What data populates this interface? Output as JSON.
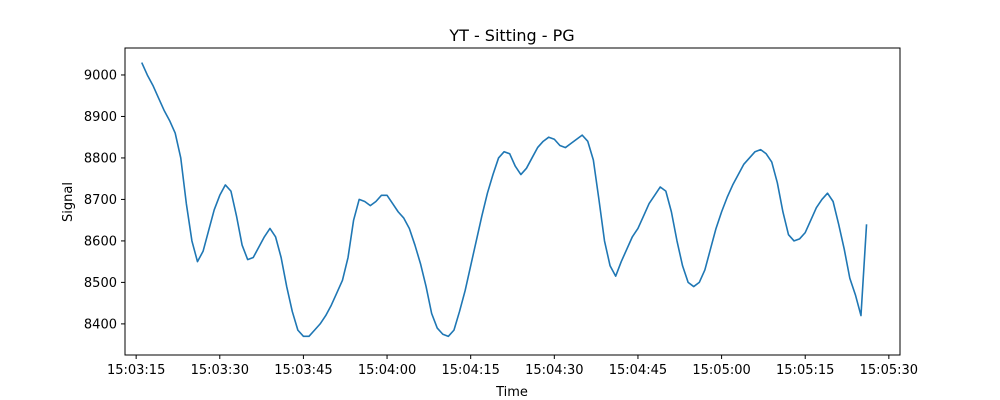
{
  "chart_data": {
    "type": "line",
    "title": "YT - Sitting - PG",
    "xlabel": "Time",
    "ylabel": "Signal",
    "grid": false,
    "x_ticks": [
      "15:03:15",
      "15:03:30",
      "15:03:45",
      "15:04:00",
      "15:04:15",
      "15:04:30",
      "15:04:45",
      "15:05:00",
      "15:05:15",
      "15:05:30"
    ],
    "y_ticks": [
      8400,
      8500,
      8600,
      8700,
      8800,
      8900,
      9000
    ],
    "xlim": [
      "15:03:13",
      "15:05:32"
    ],
    "ylim": [
      8325,
      9065
    ],
    "series": [
      {
        "color": "#1f77b4",
        "points": [
          [
            "15:03:16",
            9030
          ],
          [
            "15:03:17",
            9000
          ],
          [
            "15:03:18",
            8975
          ],
          [
            "15:03:19",
            8945
          ],
          [
            "15:03:20",
            8915
          ],
          [
            "15:03:21",
            8890
          ],
          [
            "15:03:22",
            8860
          ],
          [
            "15:03:23",
            8800
          ],
          [
            "15:03:24",
            8690
          ],
          [
            "15:03:25",
            8600
          ],
          [
            "15:03:26",
            8550
          ],
          [
            "15:03:27",
            8575
          ],
          [
            "15:03:28",
            8625
          ],
          [
            "15:03:29",
            8675
          ],
          [
            "15:03:30",
            8710
          ],
          [
            "15:03:31",
            8735
          ],
          [
            "15:03:32",
            8720
          ],
          [
            "15:03:33",
            8660
          ],
          [
            "15:03:34",
            8590
          ],
          [
            "15:03:35",
            8555
          ],
          [
            "15:03:36",
            8560
          ],
          [
            "15:03:37",
            8585
          ],
          [
            "15:03:38",
            8610
          ],
          [
            "15:03:39",
            8630
          ],
          [
            "15:03:40",
            8610
          ],
          [
            "15:03:41",
            8560
          ],
          [
            "15:03:42",
            8490
          ],
          [
            "15:03:43",
            8430
          ],
          [
            "15:03:44",
            8385
          ],
          [
            "15:03:45",
            8370
          ],
          [
            "15:03:46",
            8370
          ],
          [
            "15:03:47",
            8385
          ],
          [
            "15:03:48",
            8400
          ],
          [
            "15:03:49",
            8420
          ],
          [
            "15:03:50",
            8445
          ],
          [
            "15:03:51",
            8475
          ],
          [
            "15:03:52",
            8505
          ],
          [
            "15:03:53",
            8560
          ],
          [
            "15:03:54",
            8650
          ],
          [
            "15:03:55",
            8700
          ],
          [
            "15:03:56",
            8695
          ],
          [
            "15:03:57",
            8685
          ],
          [
            "15:03:58",
            8695
          ],
          [
            "15:03:59",
            8710
          ],
          [
            "15:04:00",
            8710
          ],
          [
            "15:04:01",
            8690
          ],
          [
            "15:04:02",
            8670
          ],
          [
            "15:04:03",
            8655
          ],
          [
            "15:04:04",
            8630
          ],
          [
            "15:04:05",
            8590
          ],
          [
            "15:04:06",
            8545
          ],
          [
            "15:04:07",
            8490
          ],
          [
            "15:04:08",
            8425
          ],
          [
            "15:04:09",
            8390
          ],
          [
            "15:04:10",
            8375
          ],
          [
            "15:04:11",
            8370
          ],
          [
            "15:04:12",
            8385
          ],
          [
            "15:04:13",
            8430
          ],
          [
            "15:04:14",
            8480
          ],
          [
            "15:04:15",
            8540
          ],
          [
            "15:04:16",
            8600
          ],
          [
            "15:04:17",
            8660
          ],
          [
            "15:04:18",
            8715
          ],
          [
            "15:04:19",
            8760
          ],
          [
            "15:04:20",
            8800
          ],
          [
            "15:04:21",
            8815
          ],
          [
            "15:04:22",
            8810
          ],
          [
            "15:04:23",
            8780
          ],
          [
            "15:04:24",
            8760
          ],
          [
            "15:04:25",
            8775
          ],
          [
            "15:04:26",
            8800
          ],
          [
            "15:04:27",
            8825
          ],
          [
            "15:04:28",
            8840
          ],
          [
            "15:04:29",
            8850
          ],
          [
            "15:04:30",
            8845
          ],
          [
            "15:04:31",
            8830
          ],
          [
            "15:04:32",
            8825
          ],
          [
            "15:04:33",
            8835
          ],
          [
            "15:04:34",
            8845
          ],
          [
            "15:04:35",
            8855
          ],
          [
            "15:04:36",
            8840
          ],
          [
            "15:04:37",
            8795
          ],
          [
            "15:04:38",
            8700
          ],
          [
            "15:04:39",
            8600
          ],
          [
            "15:04:40",
            8540
          ],
          [
            "15:04:41",
            8515
          ],
          [
            "15:04:42",
            8550
          ],
          [
            "15:04:43",
            8580
          ],
          [
            "15:04:44",
            8610
          ],
          [
            "15:04:45",
            8630
          ],
          [
            "15:04:46",
            8660
          ],
          [
            "15:04:47",
            8690
          ],
          [
            "15:04:48",
            8710
          ],
          [
            "15:04:49",
            8730
          ],
          [
            "15:04:50",
            8720
          ],
          [
            "15:04:51",
            8670
          ],
          [
            "15:04:52",
            8600
          ],
          [
            "15:04:53",
            8540
          ],
          [
            "15:04:54",
            8500
          ],
          [
            "15:04:55",
            8490
          ],
          [
            "15:04:56",
            8500
          ],
          [
            "15:04:57",
            8530
          ],
          [
            "15:04:58",
            8580
          ],
          [
            "15:04:59",
            8630
          ],
          [
            "15:05:00",
            8670
          ],
          [
            "15:05:01",
            8705
          ],
          [
            "15:05:02",
            8735
          ],
          [
            "15:05:03",
            8760
          ],
          [
            "15:05:04",
            8785
          ],
          [
            "15:05:05",
            8800
          ],
          [
            "15:05:06",
            8815
          ],
          [
            "15:05:07",
            8820
          ],
          [
            "15:05:08",
            8810
          ],
          [
            "15:05:09",
            8790
          ],
          [
            "15:05:10",
            8740
          ],
          [
            "15:05:11",
            8670
          ],
          [
            "15:05:12",
            8615
          ],
          [
            "15:05:13",
            8600
          ],
          [
            "15:05:14",
            8605
          ],
          [
            "15:05:15",
            8620
          ],
          [
            "15:05:16",
            8650
          ],
          [
            "15:05:17",
            8680
          ],
          [
            "15:05:18",
            8700
          ],
          [
            "15:05:19",
            8715
          ],
          [
            "15:05:20",
            8695
          ],
          [
            "15:05:21",
            8640
          ],
          [
            "15:05:22",
            8580
          ],
          [
            "15:05:23",
            8510
          ],
          [
            "15:05:24",
            8470
          ],
          [
            "15:05:25",
            8420
          ],
          [
            "15:05:26",
            8640
          ]
        ]
      }
    ]
  }
}
